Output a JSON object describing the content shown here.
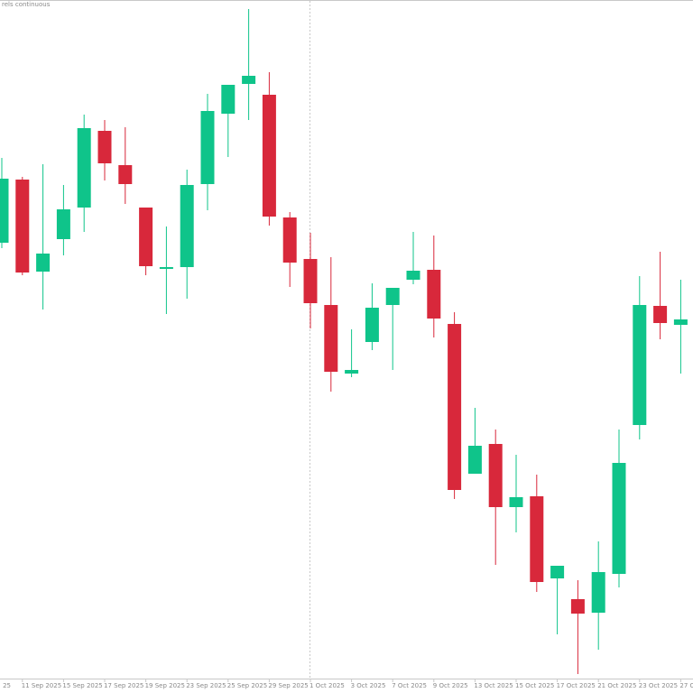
{
  "chart_data": {
    "type": "candlestick",
    "title": "rels continuous",
    "left_edge_label": "25",
    "categories": [
      null,
      "11 Sep 2025",
      null,
      "15 Sep 2025",
      null,
      "17 Sep 2025",
      null,
      "19 Sep 2025",
      null,
      "23 Sep 2025",
      null,
      "25 Sep 2025",
      null,
      "29 Sep 2025",
      null,
      "1 Oct 2025",
      null,
      "3 Oct 2025",
      null,
      "7 Oct 2025",
      null,
      "9 Oct 2025",
      null,
      "13 Oct 2025",
      null,
      "15 Oct 2025",
      null,
      "17 Oct 2025",
      null,
      "21 Oct 2025",
      null,
      "23 Oct 2025",
      null,
      "27 O"
    ],
    "open": [
      499,
      569,
      467,
      503,
      538,
      623,
      585,
      538,
      470,
      472,
      564,
      642,
      675,
      663,
      527,
      481,
      430,
      354,
      389,
      430,
      458,
      469,
      409,
      243,
      276,
      206,
      218,
      127,
      104,
      89,
      132,
      297,
      429,
      408
    ],
    "high": [
      593,
      572,
      586,
      563,
      641,
      635,
      627,
      538,
      517,
      580,
      664,
      674,
      758,
      688,
      533,
      510,
      483,
      403,
      454,
      449,
      511,
      507,
      422,
      316,
      292,
      264,
      242,
      141,
      125,
      168,
      292,
      462,
      489,
      458
    ],
    "low": [
      493,
      463,
      425,
      485,
      511,
      568,
      542,
      463,
      420,
      437,
      535,
      594,
      635,
      518,
      450,
      404,
      334,
      350,
      380,
      358,
      453,
      394,
      215,
      243,
      142,
      178,
      112,
      65,
      21,
      48,
      117,
      281,
      392,
      354
    ],
    "close": [
      570,
      466,
      487,
      536,
      626,
      587,
      564,
      473,
      472,
      563,
      645,
      674,
      684,
      528,
      477,
      432,
      356,
      358,
      427,
      449,
      468,
      415,
      225,
      274,
      206,
      217,
      123,
      141,
      88,
      134,
      255,
      430,
      410,
      414
    ],
    "up_color": "#0fc48a",
    "down_color": "#d8283b",
    "ylim": [
      0,
      768
    ]
  }
}
